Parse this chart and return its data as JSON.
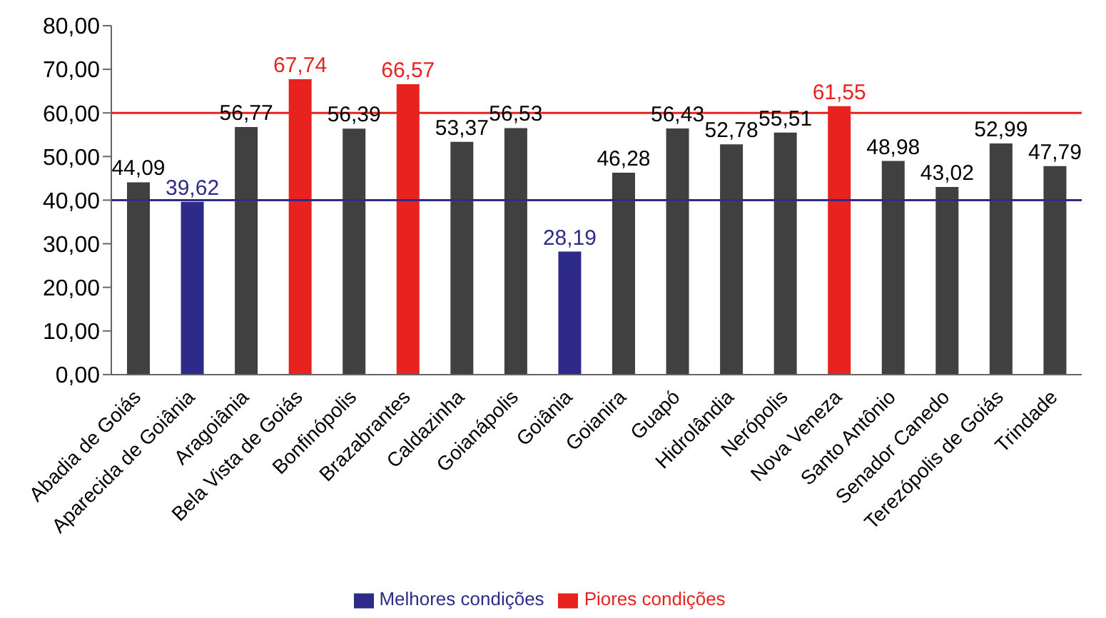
{
  "chart_data": {
    "type": "bar",
    "categories": [
      "Abadia de Goiás",
      "Aparecida de Goiânia",
      "Aragoiânia",
      "Bela Vista de Goiás",
      "Bonfinópolis",
      "Brazabrantes",
      "Caldazinha",
      "Goianápolis",
      "Goiânia",
      "Goianira",
      "Guapó",
      "Hidrolândia",
      "Nerópolis",
      "Nova Veneza",
      "Santo Antônio",
      "Senador Canedo",
      "Terezópolis de Goiás",
      "Trindade"
    ],
    "stacked": true,
    "series": [
      {
        "color": "#404040",
        "values": [
          44.09,
          null,
          56.77,
          null,
          56.39,
          null,
          53.37,
          56.53,
          null,
          46.28,
          56.43,
          52.78,
          55.51,
          null,
          48.98,
          43.02,
          52.99,
          47.79
        ],
        "value_labels": [
          "44,09",
          null,
          "56,77",
          null,
          "56,39",
          null,
          "53,37",
          "56,53",
          null,
          "46,28",
          "56,43",
          "52,78",
          "55,51",
          null,
          "48,98",
          "43,02",
          "52,99",
          "47,79"
        ]
      },
      {
        "name": "Melhores condições",
        "color": "#2e2a8a",
        "values": [
          null,
          39.62,
          null,
          null,
          null,
          null,
          null,
          null,
          28.19,
          null,
          null,
          null,
          null,
          null,
          null,
          null,
          null,
          null
        ],
        "value_labels": [
          null,
          "39,62",
          null,
          null,
          null,
          null,
          null,
          null,
          "28,19",
          null,
          null,
          null,
          null,
          null,
          null,
          null,
          null,
          null
        ]
      },
      {
        "name": "Piores condições",
        "color": "#e8231f",
        "values": [
          null,
          null,
          null,
          67.74,
          null,
          66.57,
          null,
          null,
          null,
          null,
          null,
          null,
          null,
          61.55,
          null,
          null,
          null,
          null
        ],
        "value_labels": [
          null,
          null,
          null,
          "67,74",
          null,
          "66,57",
          null,
          null,
          null,
          null,
          null,
          null,
          null,
          "61,55",
          null,
          null,
          null,
          null
        ]
      }
    ],
    "ylim": [
      0,
      80
    ],
    "yticks": [
      {
        "value": 0,
        "label": "0,00"
      },
      {
        "value": 10,
        "label": "10,00"
      },
      {
        "value": 20,
        "label": "20,00"
      },
      {
        "value": 30,
        "label": "30,00"
      },
      {
        "value": 40,
        "label": "40,00"
      },
      {
        "value": 50,
        "label": "50,00"
      },
      {
        "value": 60,
        "label": "60,00"
      },
      {
        "value": 70,
        "label": "70,00"
      },
      {
        "value": 80,
        "label": "80,00"
      }
    ],
    "ref_lines": [
      {
        "axis": "y",
        "value": 40,
        "color": "#2e2a8a"
      },
      {
        "axis": "y",
        "value": 60,
        "color": "#e8231f"
      }
    ],
    "legend": "bottom"
  }
}
